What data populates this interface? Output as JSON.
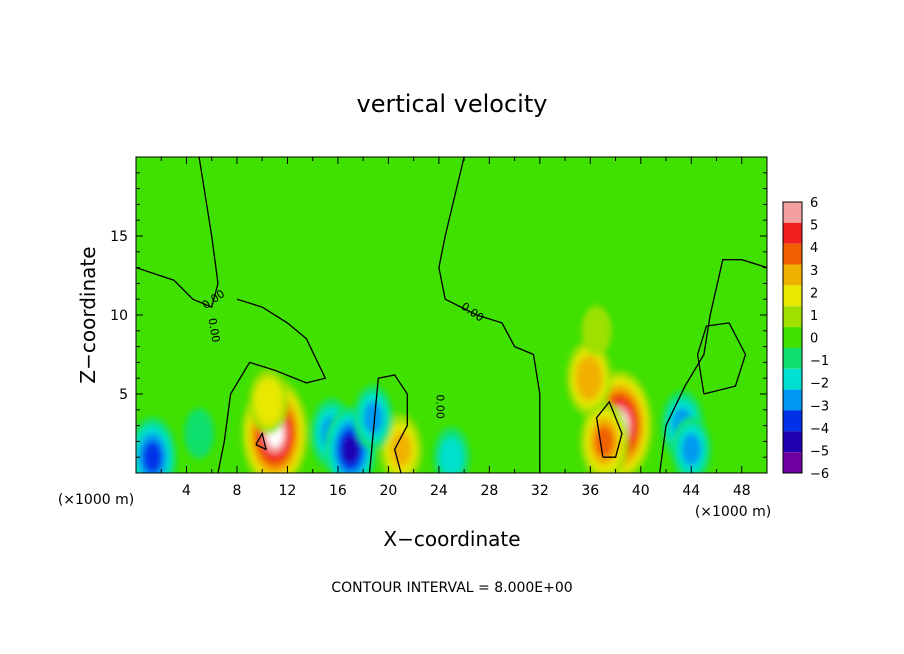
{
  "chart_data": {
    "type": "heatmap",
    "title": "vertical velocity",
    "xlabel": "X−coordinate",
    "ylabel": "Z−coordinate",
    "x_unit_label": "(×1000 m)",
    "y_unit_label": "(×1000 m)",
    "xlim": [
      0,
      50
    ],
    "ylim": [
      0,
      20
    ],
    "x_ticks": [
      4,
      8,
      12,
      16,
      20,
      24,
      28,
      32,
      36,
      40,
      44,
      48
    ],
    "x_tick_labels": [
      "4",
      "8",
      "12",
      "16",
      "20",
      "24",
      "28",
      "32",
      "36",
      "40",
      "44",
      "48"
    ],
    "y_ticks": [
      5,
      10,
      15
    ],
    "y_tick_labels": [
      "5",
      "10",
      "15"
    ],
    "footnote": "CONTOUR INTERVAL = 8.000E+00",
    "contour_label": "0.00",
    "colorbar": {
      "min": -6,
      "max": 6,
      "tick_values": [
        6,
        5,
        4,
        3,
        2,
        1,
        0,
        -1,
        -2,
        -3,
        -4,
        -5,
        -6
      ],
      "tick_labels": [
        "6",
        "5",
        "4",
        "3",
        "2",
        "1",
        "0",
        "−1",
        "−2",
        "−3",
        "−4",
        "−5",
        "−6"
      ],
      "colors": [
        "#f4a0a0",
        "#f02020",
        "#f06000",
        "#f0b000",
        "#e8e800",
        "#a0e000",
        "#40e000",
        "#10e070",
        "#00e0d0",
        "#0098f0",
        "#0030e8",
        "#2000b0",
        "#7000a0"
      ]
    },
    "features": [
      {
        "x": 11.0,
        "z": 2.5,
        "value": 7.0
      },
      {
        "x": 10.5,
        "z": 4.5,
        "value": 2.5
      },
      {
        "x": 38.3,
        "z": 3.0,
        "value": 7.0
      },
      {
        "x": 35.9,
        "z": 6.0,
        "value": 3.5
      },
      {
        "x": 37.1,
        "z": 2.0,
        "value": 4.0
      },
      {
        "x": 21.0,
        "z": 1.5,
        "value": 3.0
      },
      {
        "x": 36.5,
        "z": 9.0,
        "value": 1.0
      },
      {
        "x": 15.5,
        "z": 2.5,
        "value": -3.0
      },
      {
        "x": 17.0,
        "z": 1.5,
        "value": -4.5
      },
      {
        "x": 18.8,
        "z": 3.5,
        "value": -2.5
      },
      {
        "x": 1.3,
        "z": 1.0,
        "value": -4.0
      },
      {
        "x": 5.0,
        "z": 2.5,
        "value": -1.0
      },
      {
        "x": 43.3,
        "z": 3.0,
        "value": -3.0
      },
      {
        "x": 44.0,
        "z": 1.5,
        "value": -2.5
      },
      {
        "x": 25.0,
        "z": 1.0,
        "value": -2.0
      },
      {
        "x": 15.0,
        "z": 13.0,
        "value": 0.3
      }
    ],
    "zero_contours": [
      [
        [
          0,
          13.0
        ],
        [
          3.0,
          12.2
        ],
        [
          4.5,
          11.0
        ],
        [
          6.0,
          10.5
        ],
        [
          6.5,
          12.0
        ],
        [
          6.0,
          15.0
        ],
        [
          5.0,
          20.0
        ]
      ],
      [
        [
          8.0,
          11.0
        ],
        [
          10.0,
          10.5
        ],
        [
          12.0,
          9.5
        ],
        [
          13.5,
          8.5
        ],
        [
          15.0,
          6.0
        ],
        [
          13.5,
          5.7
        ],
        [
          11.0,
          6.5
        ],
        [
          9.0,
          7.0
        ],
        [
          7.5,
          5.0
        ],
        [
          7.0,
          2.0
        ],
        [
          6.5,
          0
        ]
      ],
      [
        [
          26.0,
          20.0
        ],
        [
          24.5,
          15.0
        ],
        [
          24.0,
          13.0
        ],
        [
          24.5,
          11.0
        ],
        [
          27.0,
          10.0
        ],
        [
          29.0,
          9.5
        ],
        [
          30.0,
          8.0
        ],
        [
          31.5,
          7.5
        ],
        [
          32.0,
          5.0
        ],
        [
          32.0,
          0
        ]
      ],
      [
        [
          41.5,
          0
        ],
        [
          42.0,
          3.0
        ],
        [
          43.5,
          5.5
        ],
        [
          45.0,
          7.5
        ],
        [
          45.5,
          10.0
        ],
        [
          46.5,
          13.5
        ],
        [
          48.0,
          13.5
        ],
        [
          50.0,
          13.0
        ]
      ],
      [
        [
          45.0,
          5.0
        ],
        [
          47.5,
          5.5
        ],
        [
          48.3,
          7.5
        ],
        [
          47.0,
          9.5
        ],
        [
          45.2,
          9.3
        ],
        [
          44.5,
          7.5
        ],
        [
          45.0,
          5.0
        ]
      ],
      [
        [
          9.5,
          1.8
        ],
        [
          10.0,
          2.5
        ],
        [
          10.3,
          1.5
        ],
        [
          9.5,
          1.8
        ]
      ],
      [
        [
          18.5,
          0
        ],
        [
          19.2,
          6.0
        ],
        [
          20.5,
          6.2
        ],
        [
          21.5,
          5.0
        ],
        [
          21.5,
          3.0
        ],
        [
          20.5,
          1.5
        ],
        [
          21.0,
          0
        ]
      ],
      [
        [
          37.0,
          1.0
        ],
        [
          36.5,
          3.5
        ],
        [
          37.5,
          4.5
        ],
        [
          38.5,
          2.5
        ],
        [
          38.0,
          1.0
        ],
        [
          37.0,
          1.0
        ]
      ]
    ]
  }
}
